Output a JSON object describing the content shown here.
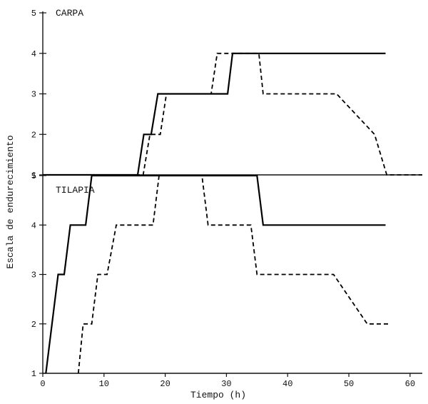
{
  "chart_data": [
    {
      "type": "line",
      "title": "CARPA",
      "xlabel": "",
      "ylabel": "",
      "xlim": [
        0,
        62
      ],
      "ylim": [
        1,
        5
      ],
      "yticks": [
        1,
        2,
        3,
        4,
        5
      ],
      "xticks": [],
      "series": [
        {
          "style": "solid",
          "points": [
            [
              0,
              1
            ],
            [
              15.5,
              1
            ],
            [
              16.5,
              2
            ],
            [
              17.7,
              2
            ],
            [
              18.8,
              3
            ],
            [
              30.2,
              3
            ],
            [
              31,
              4
            ],
            [
              56,
              4
            ]
          ]
        },
        {
          "style": "dashed",
          "points": [
            [
              0,
              1
            ],
            [
              16.4,
              1
            ],
            [
              17.5,
              2
            ],
            [
              19.2,
              2
            ],
            [
              20.2,
              3
            ],
            [
              27.5,
              3
            ],
            [
              28.5,
              4
            ],
            [
              35.3,
              4
            ],
            [
              36,
              3
            ],
            [
              48,
              3
            ],
            [
              54.2,
              2
            ],
            [
              56.2,
              1
            ],
            [
              62,
              1
            ]
          ]
        }
      ]
    },
    {
      "type": "line",
      "title": "TILAPIA",
      "xlabel": "Tiempo (h)",
      "ylabel": "",
      "xlim": [
        0,
        62
      ],
      "ylim": [
        1,
        5
      ],
      "yticks": [
        1,
        2,
        3,
        4,
        5
      ],
      "xticks": [
        0,
        10,
        20,
        30,
        40,
        50,
        60
      ],
      "series": [
        {
          "style": "solid",
          "points": [
            [
              0.5,
              1
            ],
            [
              2.5,
              3
            ],
            [
              3.5,
              3
            ],
            [
              4.5,
              4
            ],
            [
              7,
              4
            ],
            [
              8,
              5
            ],
            [
              35,
              5
            ],
            [
              36,
              4
            ],
            [
              56,
              4
            ]
          ]
        },
        {
          "style": "dashed",
          "points": [
            [
              5.8,
              1
            ],
            [
              6.6,
              2
            ],
            [
              8,
              2
            ],
            [
              9,
              3
            ],
            [
              10.5,
              3
            ],
            [
              12,
              4
            ],
            [
              18,
              4
            ],
            [
              19,
              5
            ],
            [
              26,
              5
            ],
            [
              27,
              4
            ],
            [
              34,
              4
            ],
            [
              35,
              3
            ],
            [
              47.5,
              3
            ],
            [
              53,
              2
            ],
            [
              56.5,
              2
            ]
          ]
        }
      ]
    }
  ],
  "shared_ylabel": "Escala de endurecimiento"
}
